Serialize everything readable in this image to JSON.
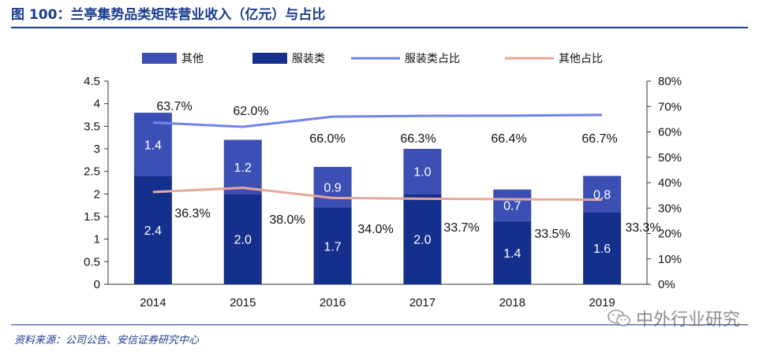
{
  "title": "图 100：兰亭集势品类矩阵营业收入（亿元）与占比",
  "source": "资料来源：公司公告、安信证券研究中心",
  "watermark": "中外行业研究",
  "chart_data": {
    "type": "bar",
    "stacked": true,
    "categories": [
      "2014",
      "2015",
      "2016",
      "2017",
      "2018",
      "2019"
    ],
    "series": [
      {
        "name": "服装类",
        "kind": "bar",
        "axis": "left",
        "color": "#142f8c",
        "values": [
          2.4,
          2.0,
          1.7,
          2.0,
          1.4,
          1.6
        ],
        "labels": [
          "2.4",
          "2.0",
          "1.7",
          "2.0",
          "1.4",
          "1.6"
        ]
      },
      {
        "name": "其他",
        "kind": "bar",
        "axis": "left",
        "color": "#3c4fb4",
        "values": [
          1.4,
          1.2,
          0.9,
          1.0,
          0.7,
          0.8
        ],
        "labels": [
          "1.4",
          "1.2",
          "0.9",
          "1.0",
          "0.7",
          "0.8"
        ]
      },
      {
        "name": "服装类占比",
        "kind": "line",
        "axis": "right",
        "color": "#6f84ec",
        "values": [
          63.7,
          62.0,
          66.0,
          66.3,
          66.4,
          66.7
        ],
        "labels": [
          "63.7%",
          "62.0%",
          "66.0%",
          "66.3%",
          "66.4%",
          "66.7%"
        ]
      },
      {
        "name": "其他占比",
        "kind": "line",
        "axis": "right",
        "color": "#e6a898",
        "values": [
          36.3,
          38.0,
          34.0,
          33.7,
          33.5,
          33.3
        ],
        "labels": [
          "36.3%",
          "38.0%",
          "34.0%",
          "33.7%",
          "33.5%",
          "33.3%"
        ]
      }
    ],
    "legend": [
      "其他",
      "服装类",
      "服装类占比",
      "其他占比"
    ],
    "left_axis": {
      "min": 0,
      "max": 4.5,
      "ticks": [
        "0",
        "0.5",
        "1",
        "1.5",
        "2",
        "2.5",
        "3",
        "3.5",
        "4",
        "4.5"
      ]
    },
    "right_axis": {
      "min": 0,
      "max": 80,
      "ticks": [
        "0%",
        "10%",
        "20%",
        "30%",
        "40%",
        "50%",
        "60%",
        "70%",
        "80%"
      ]
    },
    "xlabel": "",
    "ylabel": "",
    "grid": false,
    "legend_position": "top"
  }
}
